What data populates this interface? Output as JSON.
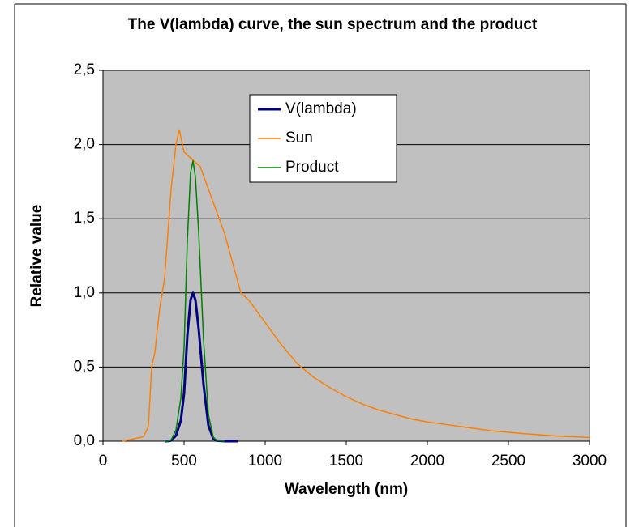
{
  "chart_data": {
    "type": "line",
    "title": "The V(lambda) curve, the sun spectrum and the product",
    "xlabel": "Wavelength (nm)",
    "ylabel": "Relative value",
    "xlim": [
      0,
      3000
    ],
    "xticks": [
      0,
      500,
      1000,
      1500,
      2000,
      2500,
      3000
    ],
    "ylim": [
      0,
      2.5
    ],
    "yticks": [
      {
        "value": 0,
        "label": "0,0"
      },
      {
        "value": 0.5,
        "label": "0,5"
      },
      {
        "value": 1,
        "label": "1,0"
      },
      {
        "value": 1.5,
        "label": "1,5"
      },
      {
        "value": 2,
        "label": "2,0"
      },
      {
        "value": 2.5,
        "label": "2,5"
      }
    ],
    "grid": true,
    "legend": "top",
    "series": [
      {
        "name": "V(lambda)",
        "color": "#000080",
        "x": [
          380,
          400,
          420,
          450,
          480,
          500,
          520,
          540,
          555,
          570,
          590,
          600,
          620,
          650,
          680,
          700,
          750,
          830
        ],
        "values": [
          0,
          0.0004,
          0.004,
          0.038,
          0.139,
          0.323,
          0.71,
          0.954,
          1.0,
          0.952,
          0.757,
          0.631,
          0.381,
          0.107,
          0.017,
          0.004,
          0.0001,
          0
        ]
      },
      {
        "name": "Sun",
        "color": "#ff8000",
        "x": [
          120,
          250,
          280,
          300,
          320,
          350,
          380,
          400,
          420,
          450,
          470,
          500,
          550,
          600,
          650,
          700,
          750,
          800,
          850,
          900,
          1000,
          1100,
          1200,
          1300,
          1400,
          1500,
          1600,
          1700,
          1800,
          1900,
          2000,
          2200,
          2400,
          2600,
          2800,
          3000
        ],
        "values": [
          0,
          0.03,
          0.1,
          0.5,
          0.6,
          0.9,
          1.1,
          1.4,
          1.7,
          2.0,
          2.1,
          1.95,
          1.9,
          1.85,
          1.7,
          1.55,
          1.4,
          1.2,
          1.0,
          0.95,
          0.8,
          0.65,
          0.52,
          0.43,
          0.36,
          0.3,
          0.25,
          0.21,
          0.18,
          0.15,
          0.13,
          0.1,
          0.07,
          0.05,
          0.035,
          0.025
        ]
      },
      {
        "name": "Product",
        "color": "#008000",
        "x": [
          380,
          400,
          420,
          450,
          480,
          500,
          520,
          540,
          555,
          570,
          590,
          600,
          620,
          650,
          680,
          700,
          750
        ],
        "values": [
          0,
          0.0006,
          0.007,
          0.076,
          0.29,
          0.63,
          1.35,
          1.81,
          1.89,
          1.78,
          1.41,
          1.17,
          0.68,
          0.18,
          0.028,
          0.006,
          0.0001
        ]
      }
    ]
  }
}
